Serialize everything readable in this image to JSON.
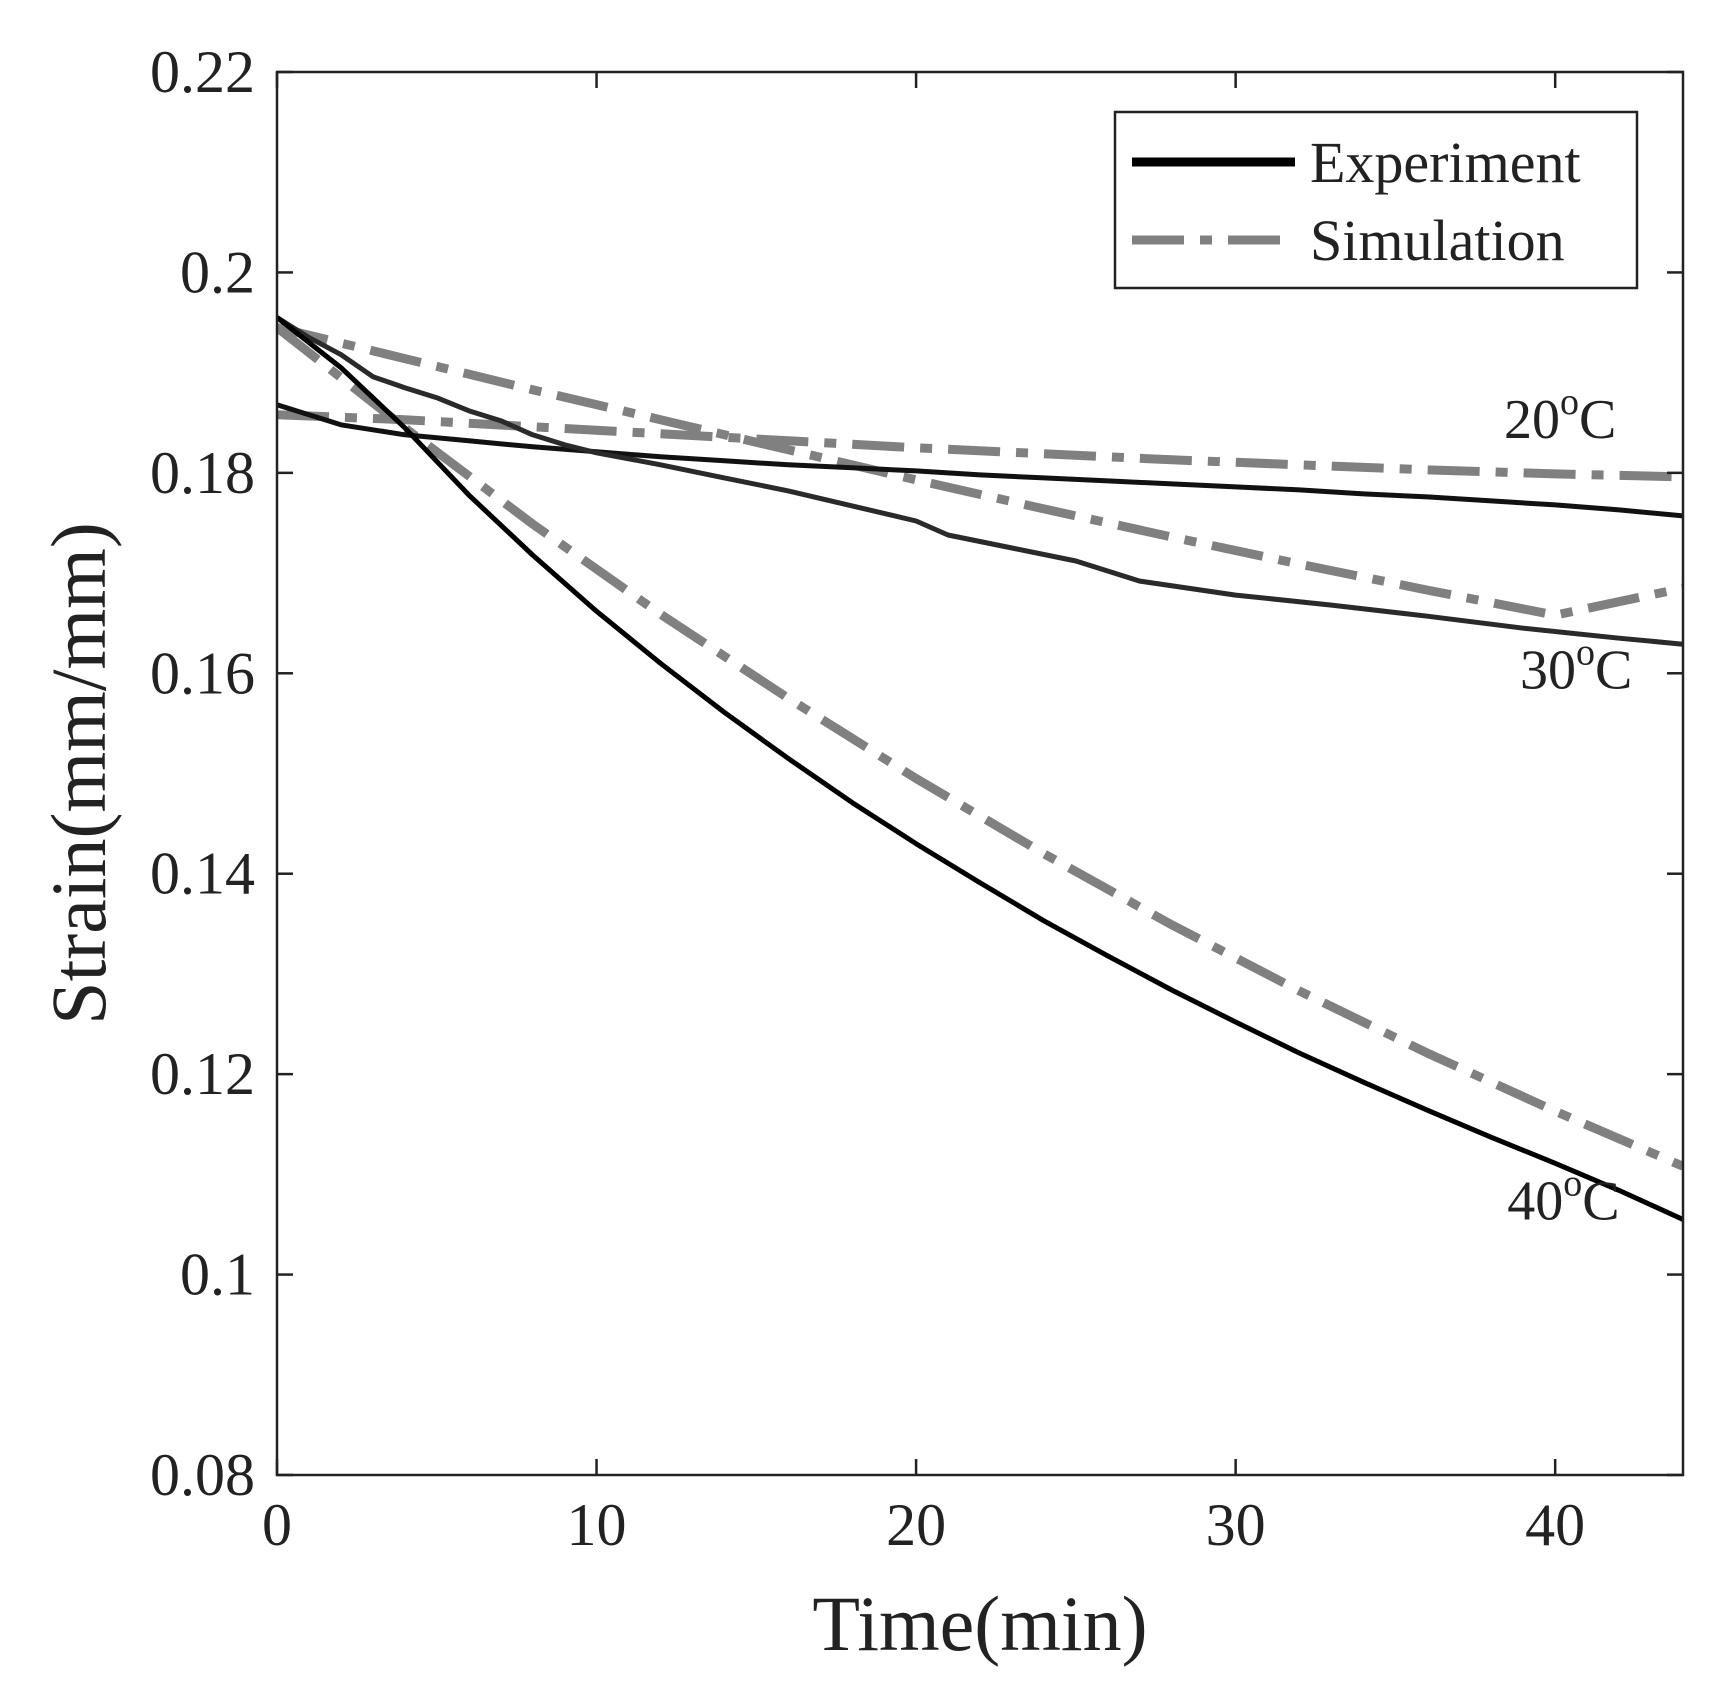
{
  "chart_data": {
    "type": "line",
    "title": "",
    "xlabel": "Time(min)",
    "ylabel": "Strain(mm/mm)",
    "xlim": [
      0,
      44
    ],
    "ylim": [
      0.08,
      0.22
    ],
    "xticks": [
      0,
      10,
      20,
      30,
      40
    ],
    "xtick_labels": [
      "0",
      "10",
      "20",
      "30",
      "40"
    ],
    "yticks": [
      0.08,
      0.1,
      0.12,
      0.14,
      0.16,
      0.18,
      0.2,
      0.22
    ],
    "ytick_labels": [
      "0.08",
      "0.1",
      "0.12",
      "0.14",
      "0.16",
      "0.18",
      "0.2",
      "0.22"
    ],
    "grid": false,
    "legend": {
      "position": "top-right",
      "entries": [
        {
          "label": "Experiment",
          "color": "#000000",
          "style": "solid"
        },
        {
          "label": "Simulation",
          "color": "#808080",
          "style": "dash-dot"
        }
      ]
    },
    "annotations": [
      {
        "base": "20",
        "sup": "o",
        "unit": "C",
        "x": 38.4,
        "y": 0.1835
      },
      {
        "base": "30",
        "sup": "o",
        "unit": "C",
        "x": 38.9,
        "y": 0.1585
      },
      {
        "base": "40",
        "sup": "o",
        "unit": "C",
        "x": 38.5,
        "y": 0.1055
      }
    ],
    "series": [
      {
        "name": "Experiment 20°C",
        "kind": "experiment",
        "color": "#111111",
        "x": [
          0,
          2,
          4,
          6,
          8,
          10,
          12,
          14,
          16,
          18,
          20,
          22,
          24,
          26,
          28,
          30,
          32,
          34,
          36,
          38,
          40,
          42,
          44
        ],
        "y": [
          0.1868,
          0.1848,
          0.1838,
          0.1832,
          0.1826,
          0.1821,
          0.1816,
          0.1812,
          0.1808,
          0.1805,
          0.1802,
          0.1798,
          0.1795,
          0.1792,
          0.1789,
          0.1786,
          0.1783,
          0.1779,
          0.1776,
          0.1772,
          0.1768,
          0.1763,
          0.1757
        ]
      },
      {
        "name": "Experiment 30°C",
        "kind": "experiment",
        "color": "#2a2a2a",
        "x": [
          0,
          1,
          2,
          3,
          4,
          5,
          6,
          7,
          8,
          9,
          10,
          12,
          14,
          16,
          18,
          20,
          21,
          23,
          25,
          27,
          30,
          33,
          36,
          39,
          42,
          44
        ],
        "y": [
          0.1955,
          0.1935,
          0.1918,
          0.1896,
          0.1885,
          0.1875,
          0.1862,
          0.1852,
          0.1838,
          0.1828,
          0.182,
          0.1808,
          0.1795,
          0.1782,
          0.1767,
          0.1752,
          0.1738,
          0.1725,
          0.1712,
          0.1692,
          0.1678,
          0.1668,
          0.1657,
          0.1645,
          0.1635,
          0.1629
        ]
      },
      {
        "name": "Experiment 40°C",
        "kind": "experiment",
        "color": "#000000",
        "x": [
          0,
          2,
          4,
          6,
          8,
          10,
          12,
          14,
          16,
          18,
          20,
          22,
          24,
          26,
          28,
          30,
          32,
          34,
          36,
          38,
          40,
          42,
          44
        ],
        "y": [
          0.1955,
          0.1905,
          0.1845,
          0.1778,
          0.1718,
          0.1662,
          0.161,
          0.1561,
          0.1515,
          0.1471,
          0.143,
          0.1391,
          0.1353,
          0.1318,
          0.1284,
          0.1252,
          0.1221,
          0.1192,
          0.1164,
          0.1137,
          0.1111,
          0.1084,
          0.1055
        ]
      },
      {
        "name": "Simulation 20°C",
        "kind": "simulation",
        "color": "#808080",
        "x": [
          0,
          4,
          8,
          12,
          16,
          20,
          24,
          28,
          32,
          36,
          40,
          44
        ],
        "y": [
          0.1858,
          0.1853,
          0.1846,
          0.1839,
          0.1832,
          0.1825,
          0.1819,
          0.1813,
          0.1808,
          0.1803,
          0.1799,
          0.1796
        ]
      },
      {
        "name": "Simulation 30°C",
        "kind": "simulation",
        "color": "#808080",
        "x": [
          0,
          4,
          8,
          12,
          16,
          20,
          24,
          28,
          32,
          36,
          40,
          44
        ],
        "y": [
          0.1945,
          0.1914,
          0.1883,
          0.1853,
          0.1823,
          0.1793,
          0.1764,
          0.1736,
          0.1709,
          0.1683,
          0.1658,
          0.1685
        ]
      },
      {
        "name": "Simulation 40°C",
        "kind": "simulation",
        "color": "#808080",
        "x": [
          0,
          4,
          8,
          12,
          16,
          20,
          24,
          28,
          32,
          36,
          40,
          44
        ],
        "y": [
          0.1945,
          0.1845,
          0.1749,
          0.1659,
          0.1575,
          0.1495,
          0.142,
          0.1349,
          0.1283,
          0.1221,
          0.1163,
          0.1108
        ]
      }
    ]
  }
}
